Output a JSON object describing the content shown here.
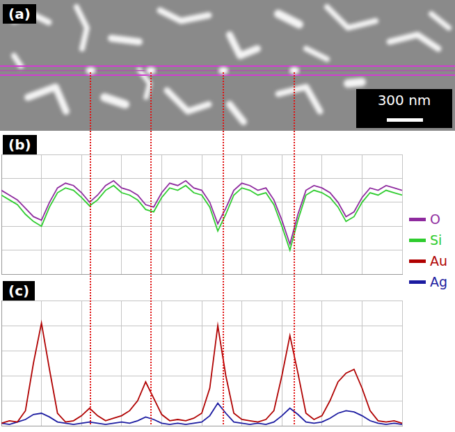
{
  "image": {
    "label": "(a)",
    "scale_bar": "300 nm"
  },
  "chart_data": [
    {
      "label": "(b)",
      "type": "line",
      "x": [
        0,
        2,
        4,
        6,
        8,
        10,
        12,
        14,
        16,
        18,
        20,
        22,
        24,
        26,
        28,
        30,
        32,
        34,
        36,
        38,
        40,
        42,
        44,
        46,
        48,
        50,
        52,
        54,
        56,
        58,
        60,
        62,
        64,
        66,
        68,
        70,
        72,
        74,
        76,
        78,
        80,
        82,
        84,
        86,
        88,
        90,
        92,
        94,
        96,
        98,
        100
      ],
      "series": [
        {
          "name": "O",
          "color": "#8e2a9e",
          "values": [
            70,
            66,
            62,
            55,
            48,
            45,
            60,
            72,
            76,
            74,
            68,
            60,
            66,
            74,
            78,
            72,
            70,
            66,
            58,
            56,
            68,
            76,
            74,
            78,
            72,
            70,
            60,
            42,
            55,
            70,
            76,
            74,
            70,
            72,
            62,
            45,
            25,
            50,
            70,
            74,
            72,
            68,
            60,
            48,
            52,
            64,
            72,
            70,
            74,
            72,
            70
          ]
        },
        {
          "name": "Si",
          "color": "#2ecc2e",
          "values": [
            66,
            62,
            58,
            50,
            44,
            40,
            56,
            68,
            72,
            70,
            64,
            57,
            62,
            70,
            74,
            68,
            66,
            62,
            54,
            52,
            64,
            72,
            70,
            74,
            68,
            66,
            56,
            36,
            50,
            66,
            72,
            70,
            66,
            68,
            58,
            40,
            20,
            45,
            66,
            70,
            68,
            64,
            56,
            44,
            48,
            60,
            68,
            66,
            70,
            68,
            66
          ]
        }
      ],
      "xlim": [
        0,
        100
      ],
      "xticks": [
        0,
        10,
        20,
        30,
        40,
        50,
        60,
        70,
        80,
        90,
        100
      ],
      "ylim": [
        0,
        100
      ],
      "yticks": [
        0,
        20,
        40,
        60,
        80,
        100
      ],
      "grid": true,
      "tick_labels": false,
      "legend": "right"
    },
    {
      "label": "(c)",
      "type": "line",
      "x": [
        0,
        2,
        4,
        6,
        8,
        10,
        12,
        14,
        16,
        18,
        20,
        22,
        24,
        26,
        28,
        30,
        32,
        34,
        36,
        38,
        40,
        42,
        44,
        46,
        48,
        50,
        52,
        54,
        56,
        58,
        60,
        62,
        64,
        66,
        68,
        70,
        72,
        74,
        76,
        78,
        80,
        82,
        84,
        86,
        88,
        90,
        92,
        94,
        96,
        98,
        100
      ],
      "series": [
        {
          "name": "Au",
          "color": "#b00000",
          "values": [
            2,
            4,
            3,
            12,
            50,
            82,
            45,
            10,
            3,
            4,
            8,
            14,
            8,
            4,
            6,
            8,
            12,
            20,
            35,
            22,
            9,
            4,
            5,
            4,
            6,
            10,
            30,
            80,
            40,
            10,
            5,
            4,
            3,
            5,
            12,
            40,
            72,
            42,
            10,
            5,
            8,
            20,
            35,
            42,
            45,
            30,
            12,
            4,
            3,
            4,
            2
          ]
        },
        {
          "name": "Ag",
          "color": "#1a1aa0",
          "values": [
            2,
            1,
            3,
            5,
            9,
            10,
            7,
            3,
            2,
            1,
            2,
            3,
            2,
            1,
            2,
            3,
            2,
            4,
            7,
            5,
            2,
            1,
            2,
            1,
            2,
            3,
            8,
            18,
            10,
            3,
            2,
            1,
            2,
            1,
            3,
            8,
            14,
            9,
            3,
            2,
            3,
            6,
            10,
            12,
            11,
            8,
            4,
            2,
            1,
            2,
            1
          ]
        }
      ],
      "xlim": [
        0,
        100
      ],
      "xticks": [
        0,
        10,
        20,
        30,
        40,
        50,
        60,
        70,
        80,
        90,
        100
      ],
      "ylim": [
        0,
        100
      ],
      "yticks": [
        0,
        20,
        40,
        60,
        80,
        100
      ],
      "grid": true,
      "tick_labels": false,
      "legend": "right",
      "vlines": [
        22.3,
        37.3,
        55.4,
        73.1
      ]
    }
  ]
}
